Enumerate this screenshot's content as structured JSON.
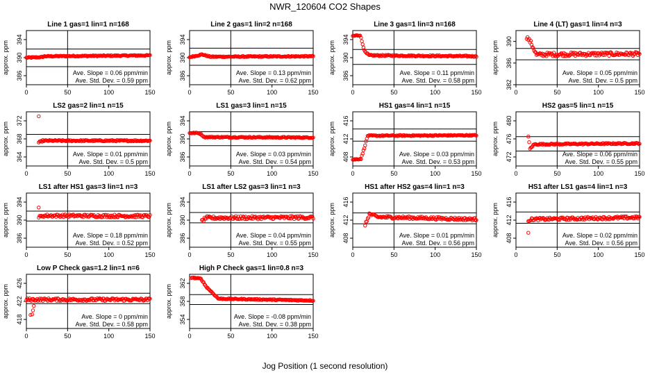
{
  "figure": {
    "title": "NWR_120604  CO2 Shapes",
    "xlabel": "Jog Position (1 second resolution)",
    "ylabel": "approx. ppm",
    "point_color": "#ff0000"
  },
  "chart_data": [
    {
      "type": "scatter",
      "title": "Line 1 gas=1 lin=1 n=168",
      "xlim": [
        0,
        150
      ],
      "xticks": [
        0,
        50,
        100,
        150
      ],
      "ylim": [
        384,
        396
      ],
      "yticks": [
        386,
        390,
        394
      ],
      "hlines": [
        388.0,
        391.9
      ],
      "vline": 50,
      "slope_text": "Ave. Slope = 0.06  ppm/min",
      "std_text": "Ave. Std. Dev. = 0.59  ppm",
      "shape": {
        "x0": 0,
        "x1": 150,
        "settle": 390.4,
        "segments": [
          [
            0,
            390.0
          ],
          [
            18,
            390.1
          ],
          [
            22,
            390.3
          ],
          [
            150,
            390.5
          ]
        ],
        "noise": 0.12
      }
    },
    {
      "type": "scatter",
      "title": "Line 2 gas=1 lin=2 n=168",
      "xlim": [
        0,
        150
      ],
      "xticks": [
        0,
        50,
        100,
        150
      ],
      "ylim": [
        384,
        396
      ],
      "yticks": [
        386,
        390,
        394
      ],
      "hlines": [
        388.3,
        392.1
      ],
      "vline": 50,
      "slope_text": "Ave. Slope = 0.13  ppm/min",
      "std_text": "Ave. Std. Dev. = 0.62  ppm",
      "shape": {
        "x0": 0,
        "x1": 150,
        "segments": [
          [
            0,
            390.1
          ],
          [
            15,
            390.7
          ],
          [
            25,
            390.2
          ],
          [
            150,
            390.3
          ]
        ],
        "noise": 0.12
      }
    },
    {
      "type": "scatter",
      "title": "Line 3 gas=1 lin=3 n=168",
      "xlim": [
        0,
        150
      ],
      "xticks": [
        0,
        50,
        100,
        150
      ],
      "ylim": [
        384,
        396
      ],
      "yticks": [
        386,
        390,
        394
      ],
      "hlines": [
        388.5,
        391.8
      ],
      "vline": 50,
      "slope_text": "Ave. Slope = 0.11  ppm/min",
      "std_text": "Ave. Std. Dev. = 0.58  ppm",
      "shape": {
        "x0": 0,
        "x1": 150,
        "segments": [
          [
            0,
            394.8
          ],
          [
            9,
            395.0
          ],
          [
            12,
            393.0
          ],
          [
            15,
            391.2
          ],
          [
            20,
            390.5
          ],
          [
            150,
            390.3
          ]
        ],
        "noise": 0.15
      }
    },
    {
      "type": "scatter",
      "title": "Line 4 (LT) gas=1 lin=4 n=3",
      "xlim": [
        0,
        150
      ],
      "xticks": [
        0,
        50,
        100,
        150
      ],
      "ylim": [
        382,
        392
      ],
      "yticks": [
        382,
        386,
        390
      ],
      "hlines": [
        386.6,
        388.7
      ],
      "vline": 50,
      "slope_text": "Ave. Slope = 0.05  ppm/min",
      "std_text": "Ave. Std. Dev. = 0.5  ppm",
      "shape": {
        "x0": 13,
        "x1": 150,
        "segments": [
          [
            13,
            390.8
          ],
          [
            18,
            389.8
          ],
          [
            25,
            387.5
          ],
          [
            35,
            387.6
          ],
          [
            150,
            387.7
          ]
        ],
        "noise": 0.35
      }
    },
    {
      "type": "scatter",
      "title": "LS2 gas=2 lin=1 n=15",
      "xlim": [
        0,
        150
      ],
      "xticks": [
        0,
        50,
        100,
        150
      ],
      "ylim": [
        362,
        374
      ],
      "yticks": [
        364,
        368,
        372
      ],
      "hlines": [
        366.3,
        369.0
      ],
      "vline": 50,
      "slope_text": "Ave. Slope = 0.01  ppm/min",
      "std_text": "Ave. Std. Dev. = 0.5  ppm",
      "shape": {
        "x0": 15,
        "x1": 150,
        "segments": [
          [
            15,
            367.2
          ],
          [
            20,
            367.6
          ],
          [
            150,
            367.6
          ]
        ],
        "noise": 0.15,
        "extra": [
          [
            15,
            373.0
          ]
        ]
      }
    },
    {
      "type": "scatter",
      "title": "LS1 gas=3 lin=1 n=15",
      "xlim": [
        0,
        150
      ],
      "xticks": [
        0,
        50,
        100,
        150
      ],
      "ylim": [
        384,
        396
      ],
      "yticks": [
        386,
        390,
        394
      ],
      "hlines": [
        388.5,
        391.6
      ],
      "vline": 50,
      "slope_text": "Ave. Slope = 0.03  ppm/min",
      "std_text": "Ave. Std. Dev. = 0.54  ppm",
      "shape": {
        "x0": 0,
        "x1": 150,
        "segments": [
          [
            0,
            391.3
          ],
          [
            12,
            391.3
          ],
          [
            18,
            390.4
          ],
          [
            150,
            390.3
          ]
        ],
        "noise": 0.12
      }
    },
    {
      "type": "scatter",
      "title": "HS1 gas=4 lin=1 n=15",
      "xlim": [
        0,
        150
      ],
      "xticks": [
        0,
        50,
        100,
        150
      ],
      "ylim": [
        406,
        418
      ],
      "yticks": [
        408,
        412,
        416
      ],
      "hlines": [
        411.5,
        414.2
      ],
      "vline": 50,
      "slope_text": "Ave. Slope = 0.03  ppm/min",
      "std_text": "Ave. Std. Dev. = 0.53  ppm",
      "shape": {
        "x0": 0,
        "x1": 150,
        "segments": [
          [
            0,
            407.4
          ],
          [
            10,
            407.6
          ],
          [
            14,
            410.0
          ],
          [
            18,
            412.7
          ],
          [
            150,
            412.8
          ]
        ],
        "noise": 0.12
      }
    },
    {
      "type": "scatter",
      "title": "HS2 gas=5 lin=1 n=15",
      "xlim": [
        0,
        150
      ],
      "xticks": [
        0,
        50,
        100,
        150
      ],
      "ylim": [
        470,
        482
      ],
      "yticks": [
        472,
        476,
        480
      ],
      "hlines": [
        473.3,
        476.5
      ],
      "vline": 50,
      "slope_text": "Ave. Slope = 0.06  ppm/min",
      "std_text": "Ave. Std. Dev. = 0.55  ppm",
      "shape": {
        "x0": 15,
        "x1": 150,
        "segments": [
          [
            15,
            476.5
          ],
          [
            17,
            473.8
          ],
          [
            22,
            474.8
          ],
          [
            150,
            475.0
          ]
        ],
        "noise": 0.15
      }
    },
    {
      "type": "scatter",
      "title": "LS1 after HS1 gas=3 lin=1 n=3",
      "xlim": [
        0,
        150
      ],
      "xticks": [
        0,
        50,
        100,
        150
      ],
      "ylim": [
        384,
        396
      ],
      "yticks": [
        386,
        390,
        394
      ],
      "hlines": [
        389.8,
        392.0
      ],
      "vline": 50,
      "slope_text": "Ave. Slope = 0.18  ppm/min",
      "std_text": "Ave. Std. Dev. = 0.52  ppm",
      "shape": {
        "x0": 15,
        "x1": 150,
        "segments": [
          [
            15,
            390.6
          ],
          [
            20,
            391.0
          ],
          [
            150,
            390.9
          ]
        ],
        "noise": 0.3,
        "extra": [
          [
            15,
            392.8
          ]
        ]
      }
    },
    {
      "type": "scatter",
      "title": "LS1 after LS2 gas=3 lin=1 n=3",
      "xlim": [
        0,
        150
      ],
      "xticks": [
        0,
        50,
        100,
        150
      ],
      "ylim": [
        384,
        396
      ],
      "yticks": [
        386,
        390,
        394
      ],
      "hlines": [
        389.4,
        391.7
      ],
      "vline": 50,
      "slope_text": "Ave. Slope = 0.04  ppm/min",
      "std_text": "Ave. Std. Dev. = 0.55  ppm",
      "shape": {
        "x0": 15,
        "x1": 150,
        "segments": [
          [
            15,
            389.8
          ],
          [
            20,
            390.5
          ],
          [
            150,
            390.6
          ]
        ],
        "noise": 0.35
      }
    },
    {
      "type": "scatter",
      "title": "HS1 after HS2 gas=4 lin=1 n=3",
      "xlim": [
        0,
        150
      ],
      "xticks": [
        0,
        50,
        100,
        150
      ],
      "ylim": [
        406,
        418
      ],
      "yticks": [
        408,
        412,
        416
      ],
      "hlines": [
        411.2,
        413.6
      ],
      "vline": 50,
      "slope_text": "Ave. Slope = 0.01  ppm/min",
      "std_text": "Ave. Std. Dev. = 0.56  ppm",
      "shape": {
        "x0": 15,
        "x1": 150,
        "segments": [
          [
            15,
            410.8
          ],
          [
            20,
            413.4
          ],
          [
            30,
            412.7
          ],
          [
            150,
            412.2
          ]
        ],
        "noise": 0.3
      }
    },
    {
      "type": "scatter",
      "title": "HS1 after LS1 gas=4 lin=1 n=3",
      "xlim": [
        0,
        150
      ],
      "xticks": [
        0,
        50,
        100,
        150
      ],
      "ylim": [
        406,
        418
      ],
      "yticks": [
        408,
        412,
        416
      ],
      "hlines": [
        411.3,
        413.8
      ],
      "vline": 50,
      "slope_text": "Ave. Slope = 0.02  ppm/min",
      "std_text": "Ave. Std. Dev. = 0.56  ppm",
      "shape": {
        "x0": 15,
        "x1": 150,
        "segments": [
          [
            15,
            412.0
          ],
          [
            20,
            412.2
          ],
          [
            150,
            412.6
          ]
        ],
        "noise": 0.3,
        "extra": [
          [
            15,
            409.2
          ]
        ]
      }
    },
    {
      "type": "scatter",
      "title": "Low P Check gas=1.2 lin=1 n=6",
      "xlim": [
        0,
        150
      ],
      "xticks": [
        0,
        50,
        100,
        150
      ],
      "ylim": [
        416,
        428
      ],
      "yticks": [
        418,
        422,
        426
      ],
      "hlines": [
        421.5,
        423.8
      ],
      "vline": 50,
      "slope_text": "Ave. Slope = 0  ppm/min",
      "std_text": "Ave. Std. Dev. = 0.58  ppm",
      "shape": {
        "x0": 0,
        "x1": 150,
        "segments": [
          [
            0,
            422.4
          ],
          [
            150,
            422.4
          ]
        ],
        "noise": 0.3,
        "extra": [
          [
            5,
            419.0
          ],
          [
            7,
            419.1
          ],
          [
            8,
            420.0
          ],
          [
            9,
            421.0
          ]
        ]
      }
    },
    {
      "type": "scatter",
      "title": "High P Check gas=1 lin=0.8 n=3",
      "xlim": [
        0,
        150
      ],
      "xticks": [
        0,
        50,
        100,
        150
      ],
      "ylim": [
        352,
        364
      ],
      "yticks": [
        354,
        358,
        362
      ],
      "hlines": [
        357.3,
        359.5
      ],
      "vline": 50,
      "slope_text": "Ave. Slope = -0.08  ppm/min",
      "std_text": "Ave. Std. Dev. = 0.38  ppm",
      "shape": {
        "x0": 2,
        "x1": 150,
        "segments": [
          [
            2,
            363.3
          ],
          [
            14,
            363.0
          ],
          [
            20,
            361.3
          ],
          [
            35,
            358.6
          ],
          [
            150,
            358.2
          ]
        ],
        "noise": 0.12
      }
    }
  ]
}
